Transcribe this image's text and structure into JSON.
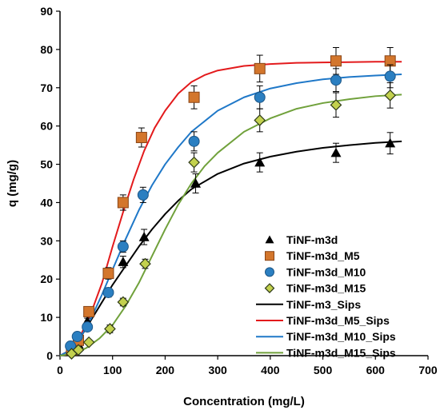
{
  "chart_data": {
    "type": "scatter",
    "xlabel": "Concentration (mg/L)",
    "ylabel": "q (mg/g)",
    "xlim": [
      0,
      700
    ],
    "ylim": [
      0,
      90
    ],
    "x_ticks": [
      0,
      100,
      200,
      300,
      400,
      500,
      600,
      700
    ],
    "y_ticks": [
      0,
      10,
      20,
      30,
      40,
      50,
      60,
      70,
      80,
      90
    ],
    "grid": false,
    "legend_position": "bottom-right",
    "series": [
      {
        "name": "TiNF-m3d",
        "kind": "points",
        "marker": "triangle",
        "color": "#000000",
        "x": [
          22,
          35,
          52,
          120,
          160,
          258,
          380,
          525,
          628
        ],
        "y": [
          1,
          3,
          9,
          24.5,
          31,
          45,
          50.5,
          53,
          55.5
        ],
        "err": [
          0.5,
          0.6,
          0.8,
          1.5,
          2,
          2.5,
          2.5,
          2.5,
          2.8
        ]
      },
      {
        "name": "TiNF-m3d_M5",
        "kind": "points",
        "marker": "square",
        "color": "#d3762c",
        "x": [
          22,
          35,
          55,
          92,
          120,
          155,
          255,
          380,
          525,
          628
        ],
        "y": [
          1.5,
          4,
          11.5,
          21.5,
          40,
          57,
          67.5,
          75,
          77,
          77
        ],
        "err": [
          0.5,
          0.7,
          1,
          1.5,
          2,
          2.5,
          3,
          3.5,
          3.5,
          3.5
        ]
      },
      {
        "name": "TiNF-m3d_M10",
        "kind": "points",
        "marker": "circle",
        "color": "#2b7fc1",
        "x": [
          20,
          33,
          52,
          92,
          120,
          158,
          255,
          380,
          525,
          628
        ],
        "y": [
          2.5,
          5,
          7.5,
          16.5,
          28.5,
          42,
          56,
          67.5,
          72,
          73
        ],
        "err": [
          0.5,
          0.6,
          0.8,
          1.2,
          1.5,
          2,
          2.5,
          3,
          3,
          3
        ]
      },
      {
        "name": "TiNF-m3d_M15",
        "kind": "points",
        "marker": "diamond",
        "color": "#c3d14e",
        "x": [
          22,
          35,
          55,
          95,
          120,
          162,
          255,
          380,
          525,
          628
        ],
        "y": [
          0.5,
          1.5,
          3.5,
          7,
          14,
          24,
          50.5,
          61.5,
          65.5,
          68
        ],
        "err": [
          0.3,
          0.4,
          0.6,
          1,
          1,
          1.2,
          2.5,
          3,
          3.2,
          3.3
        ]
      },
      {
        "name": "TiNF-m3_Sips",
        "kind": "line",
        "color": "#000000",
        "x": [
          0,
          20,
          40,
          60,
          80,
          100,
          125,
          150,
          175,
          200,
          225,
          250,
          300,
          350,
          400,
          450,
          500,
          550,
          600,
          650
        ],
        "y": [
          0,
          1.5,
          5,
          9.5,
          14,
          18.5,
          23.5,
          28.5,
          33,
          37,
          40.5,
          43.5,
          47.5,
          50.2,
          52,
          53.3,
          54.3,
          55,
          55.6,
          56
        ]
      },
      {
        "name": "TiNF-m3d_M5_Sips",
        "kind": "line",
        "color": "#e31a1c",
        "x": [
          0,
          20,
          40,
          60,
          80,
          100,
          120,
          140,
          160,
          180,
          200,
          225,
          250,
          275,
          300,
          350,
          400,
          450,
          500,
          550,
          600,
          650
        ],
        "y": [
          0,
          1.5,
          5.5,
          11.5,
          19,
          28.5,
          37.5,
          46,
          53.5,
          59.5,
          64,
          68.5,
          71.5,
          73.3,
          74.5,
          75.7,
          76.2,
          76.5,
          76.6,
          76.7,
          76.8,
          76.8
        ]
      },
      {
        "name": "TiNF-m3d_M10_Sips",
        "kind": "line",
        "color": "#1f78c8",
        "x": [
          0,
          20,
          40,
          60,
          80,
          100,
          125,
          150,
          175,
          200,
          225,
          250,
          300,
          350,
          400,
          450,
          500,
          550,
          600,
          650
        ],
        "y": [
          0,
          1.5,
          5,
          10,
          16,
          22.5,
          30.5,
          38,
          44.5,
          50,
          54.5,
          58.5,
          64,
          67.5,
          69.8,
          71.2,
          72.2,
          72.8,
          73.2,
          73.5
        ]
      },
      {
        "name": "TiNF-m3d_M15_Sips",
        "kind": "line",
        "color": "#70a13b",
        "x": [
          0,
          25,
          50,
          75,
          100,
          125,
          150,
          175,
          200,
          225,
          250,
          275,
          300,
          350,
          400,
          450,
          500,
          550,
          600,
          650
        ],
        "y": [
          0,
          0.5,
          2,
          4.5,
          8,
          13,
          19,
          26,
          33,
          39.5,
          45,
          49.5,
          53,
          58.5,
          62,
          64.5,
          66,
          67,
          67.8,
          68.2
        ]
      }
    ]
  }
}
